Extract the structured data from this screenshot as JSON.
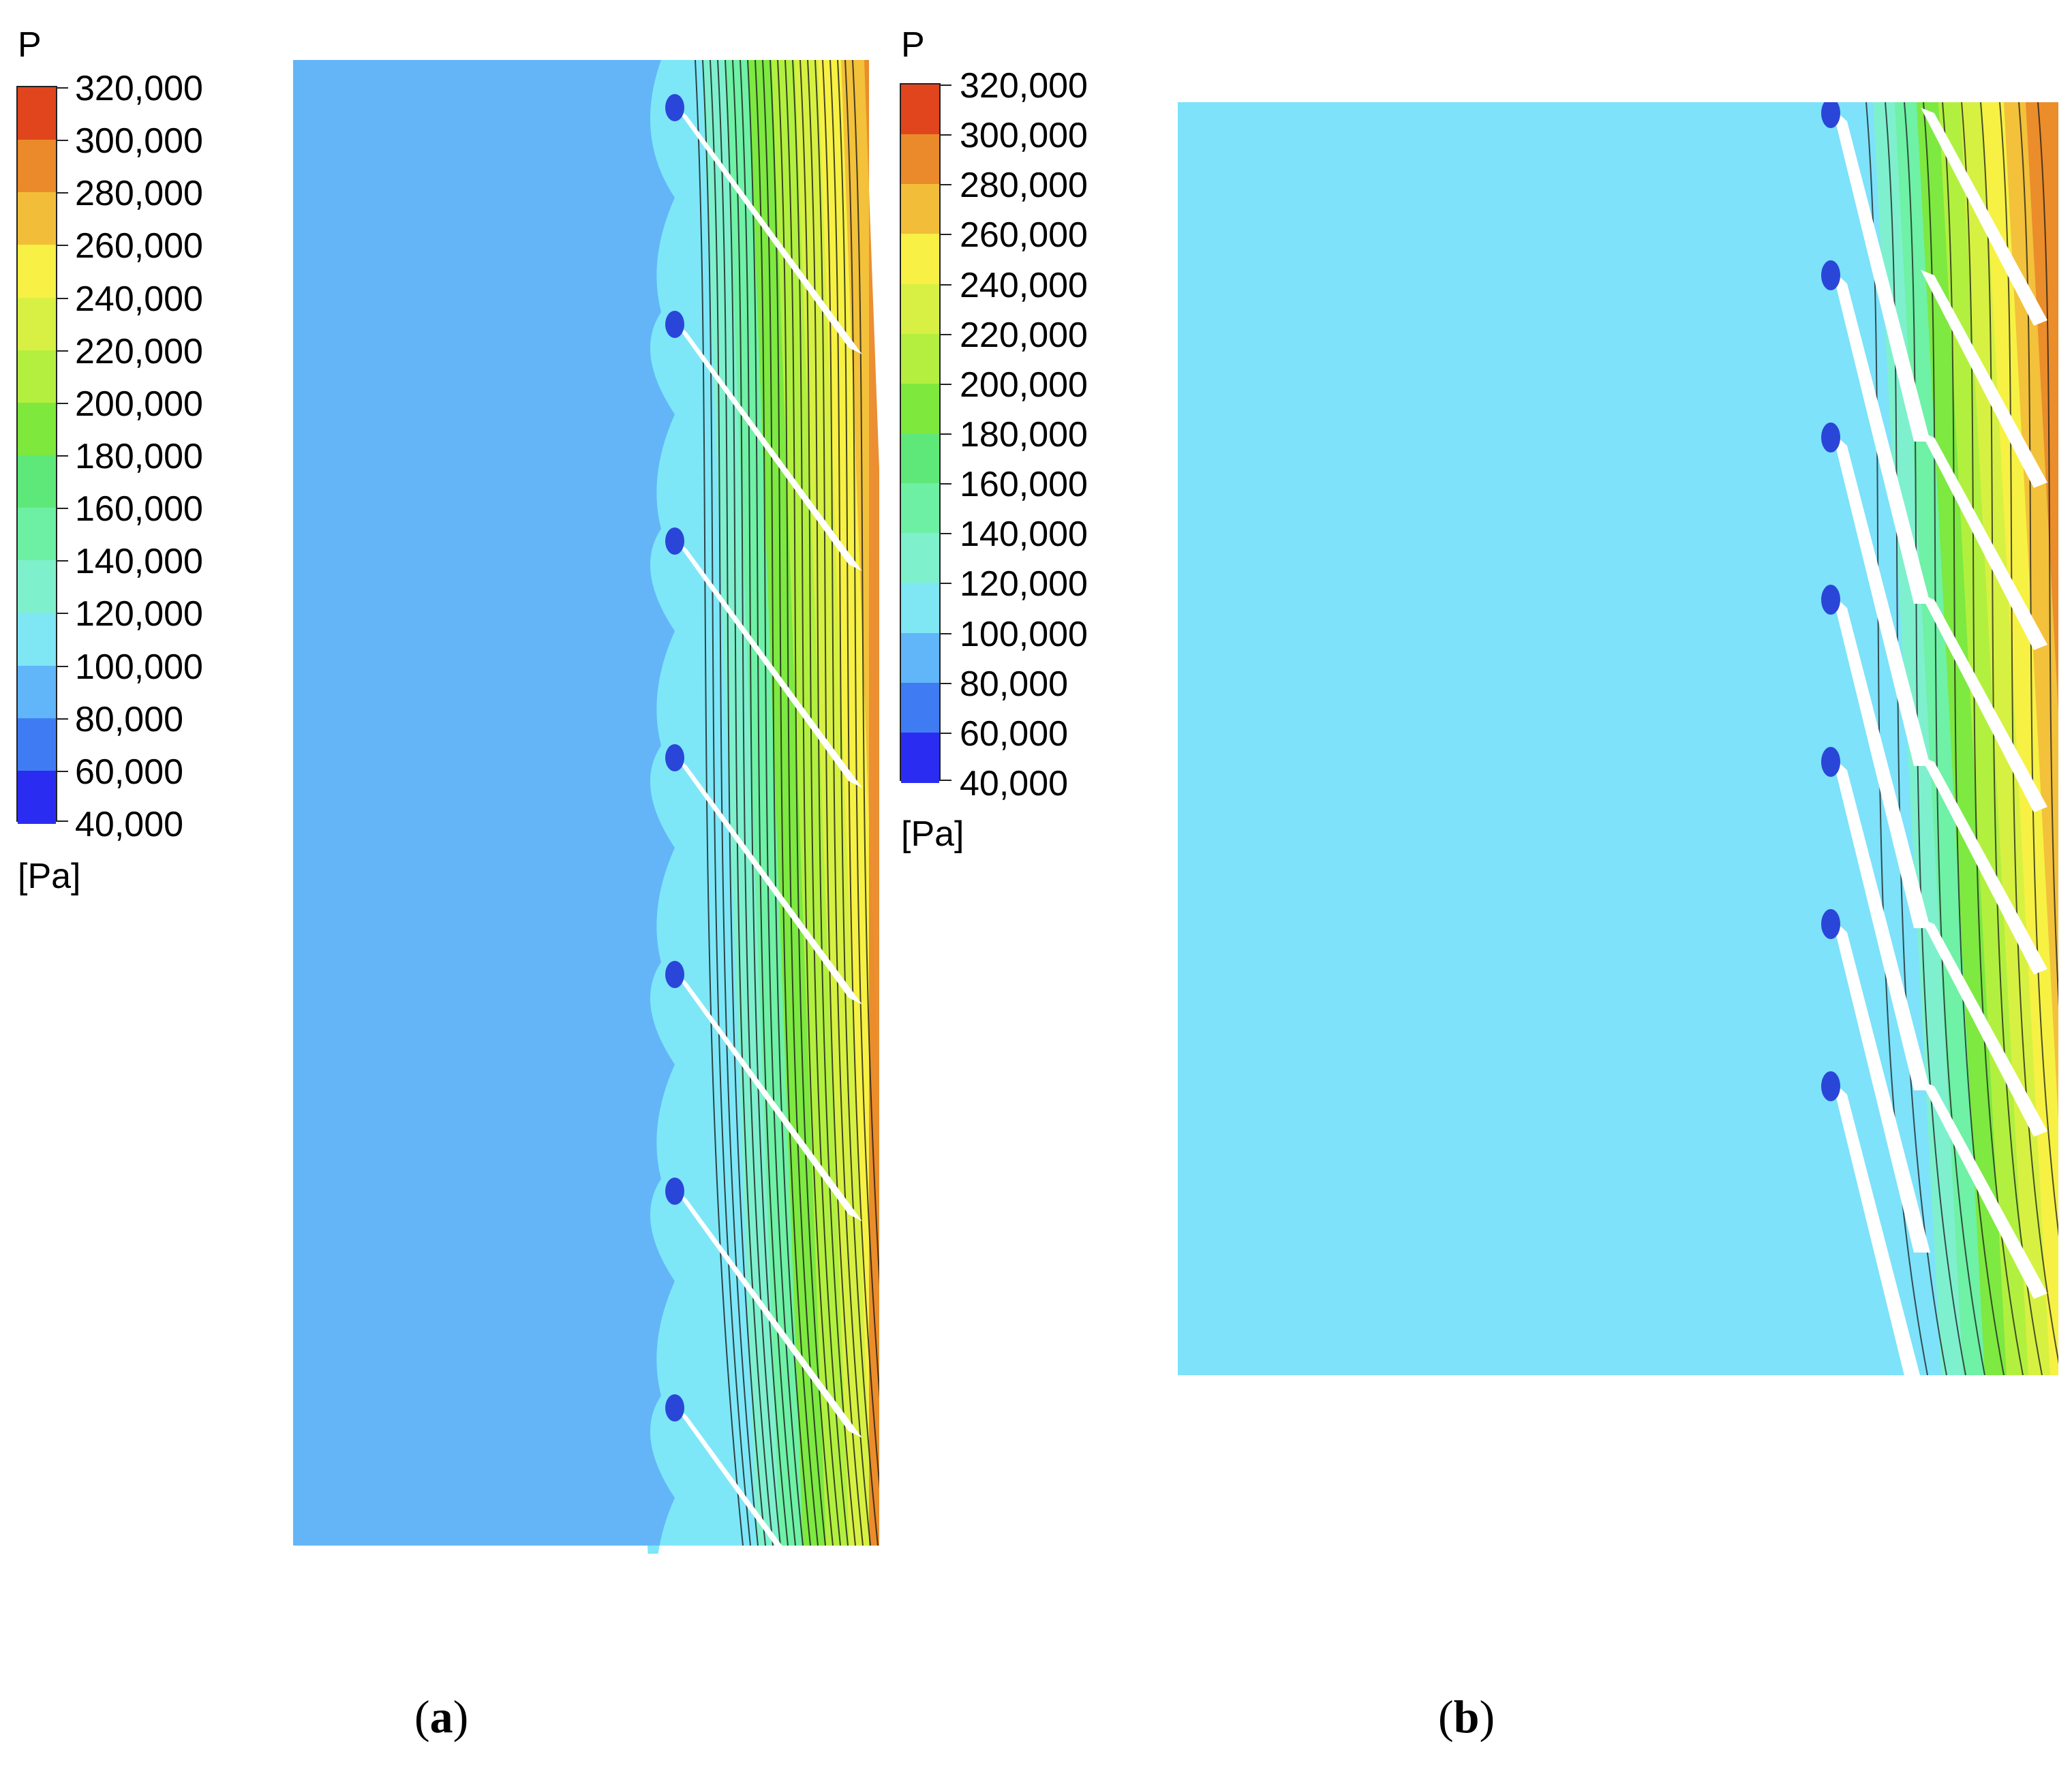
{
  "figure": {
    "legends": [
      {
        "title": "P",
        "unit": "[Pa]",
        "levels": [
          {
            "label": "320,000",
            "color": "#e0451d"
          },
          {
            "label": "300,000",
            "color": "#ea8a2a"
          },
          {
            "label": "280,000",
            "color": "#f2be3a"
          },
          {
            "label": "260,000",
            "color": "#f8f044"
          },
          {
            "label": "240,000",
            "color": "#d8f043"
          },
          {
            "label": "220,000",
            "color": "#b4ef40"
          },
          {
            "label": "200,000",
            "color": "#7ee83c"
          },
          {
            "label": "180,000",
            "color": "#5fe87a"
          },
          {
            "label": "160,000",
            "color": "#6ef0a4"
          },
          {
            "label": "140,000",
            "color": "#7ff0cc"
          },
          {
            "label": "120,000",
            "color": "#7fe6f4"
          },
          {
            "label": "100,000",
            "color": "#60b6f8"
          },
          {
            "label": "80,000",
            "color": "#3f7cf4"
          },
          {
            "label": "60,000",
            "color": "#2b2cf2"
          },
          {
            "label": "40,000",
            "color": ""
          }
        ]
      },
      {
        "title": "P",
        "unit": "[Pa]",
        "levels": [
          {
            "label": "320,000",
            "color": "#e0451d"
          },
          {
            "label": "300,000",
            "color": "#ea8a2a"
          },
          {
            "label": "280,000",
            "color": "#f2be3a"
          },
          {
            "label": "260,000",
            "color": "#f8f044"
          },
          {
            "label": "240,000",
            "color": "#d8f043"
          },
          {
            "label": "220,000",
            "color": "#b4ef40"
          },
          {
            "label": "200,000",
            "color": "#7ee83c"
          },
          {
            "label": "180,000",
            "color": "#5fe87a"
          },
          {
            "label": "160,000",
            "color": "#6ef0a4"
          },
          {
            "label": "140,000",
            "color": "#7ff0cc"
          },
          {
            "label": "120,000",
            "color": "#7fe6f4"
          },
          {
            "label": "100,000",
            "color": "#60b6f8"
          },
          {
            "label": "80,000",
            "color": "#3f7cf4"
          },
          {
            "label": "60,000",
            "color": "#2b2cf2"
          },
          {
            "label": "40,000",
            "color": ""
          }
        ]
      }
    ],
    "panels": [
      {
        "caption_letter": "a",
        "caption_open": "(",
        "caption_close": ")",
        "blade_count": 7,
        "background_color": "#64b5f8"
      },
      {
        "caption_letter": "b",
        "caption_open": "(",
        "caption_close": ")",
        "blade_count": 7,
        "background_color": "#7de2fa"
      }
    ],
    "field_colors": {
      "low": "#64b5f8",
      "inlet_light": "#7de7f8",
      "band_1": "#7ff0cc",
      "band_2": "#6ef0a4",
      "band_3": "#7ee83c",
      "band_4": "#b4ef40",
      "band_5": "#d8f043",
      "band_6": "#f8f044",
      "band_7": "#f2be3a",
      "high": "#ea8a2a",
      "blade": "#ffffff",
      "contour_line": "#1a1a1a",
      "leading_edge": "#2a46d8"
    }
  }
}
